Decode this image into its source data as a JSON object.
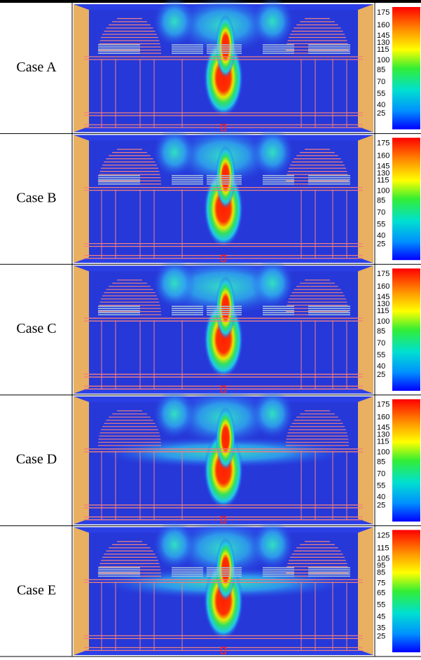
{
  "rows": [
    {
      "label": "Case A",
      "colorbar": [
        175,
        160,
        145,
        130,
        115,
        100,
        85,
        70,
        55,
        40,
        25
      ]
    },
    {
      "label": "Case B",
      "colorbar": [
        175,
        160,
        145,
        130,
        115,
        100,
        85,
        70,
        55,
        40,
        25
      ]
    },
    {
      "label": "Case C",
      "colorbar": [
        175,
        160,
        145,
        130,
        115,
        100,
        85,
        70,
        55,
        40,
        25
      ]
    },
    {
      "label": "Case D",
      "colorbar": [
        175,
        160,
        145,
        130,
        115,
        100,
        85,
        70,
        55,
        40,
        25
      ]
    },
    {
      "label": "Case E",
      "colorbar": [
        125,
        115,
        105,
        95,
        85,
        75,
        65,
        55,
        45,
        35,
        25
      ]
    }
  ]
}
